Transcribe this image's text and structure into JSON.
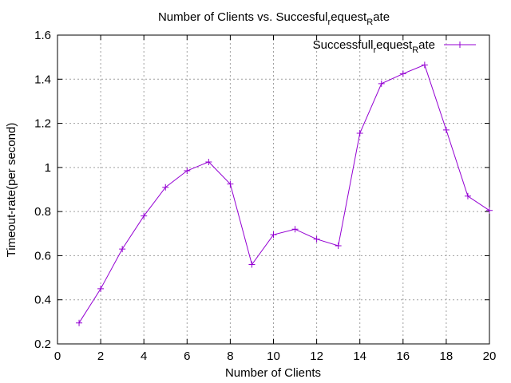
{
  "chart_data": {
    "type": "line",
    "title": {
      "before": "Number of Clients vs. Succesful",
      "sub1": "r",
      "mid": "equest",
      "sub2": "R",
      "after": "ate"
    },
    "xlabel": "Number of Clients",
    "ylabel": "Timeout-rate(per second)",
    "xlim": [
      0,
      20
    ],
    "ylim": [
      0.2,
      1.6
    ],
    "xticks": [
      0,
      2,
      4,
      6,
      8,
      10,
      12,
      14,
      16,
      18,
      20
    ],
    "yticks": [
      0.2,
      0.4,
      0.6,
      0.8,
      1,
      1.2,
      1.4,
      1.6
    ],
    "ytick_labels": [
      "0.2",
      "0.4",
      "0.6",
      "0.8",
      "1",
      "1.2",
      "1.4",
      "1.6"
    ],
    "grid": true,
    "legend_position": "top-right",
    "series": [
      {
        "name": {
          "before": "Successfull",
          "sub1": "r",
          "mid": "equest",
          "sub2": "R",
          "after": "ate"
        },
        "color": "#9400d3",
        "marker": "plus",
        "x": [
          1,
          2,
          3,
          4,
          5,
          6,
          7,
          8,
          9,
          10,
          11,
          12,
          13,
          14,
          15,
          16,
          17,
          18,
          19,
          20
        ],
        "values": [
          0.295,
          0.45,
          0.63,
          0.78,
          0.91,
          0.985,
          1.025,
          0.925,
          0.56,
          0.695,
          0.72,
          0.675,
          0.645,
          1.155,
          1.38,
          1.425,
          1.465,
          1.17,
          0.87,
          0.805
        ]
      }
    ]
  }
}
